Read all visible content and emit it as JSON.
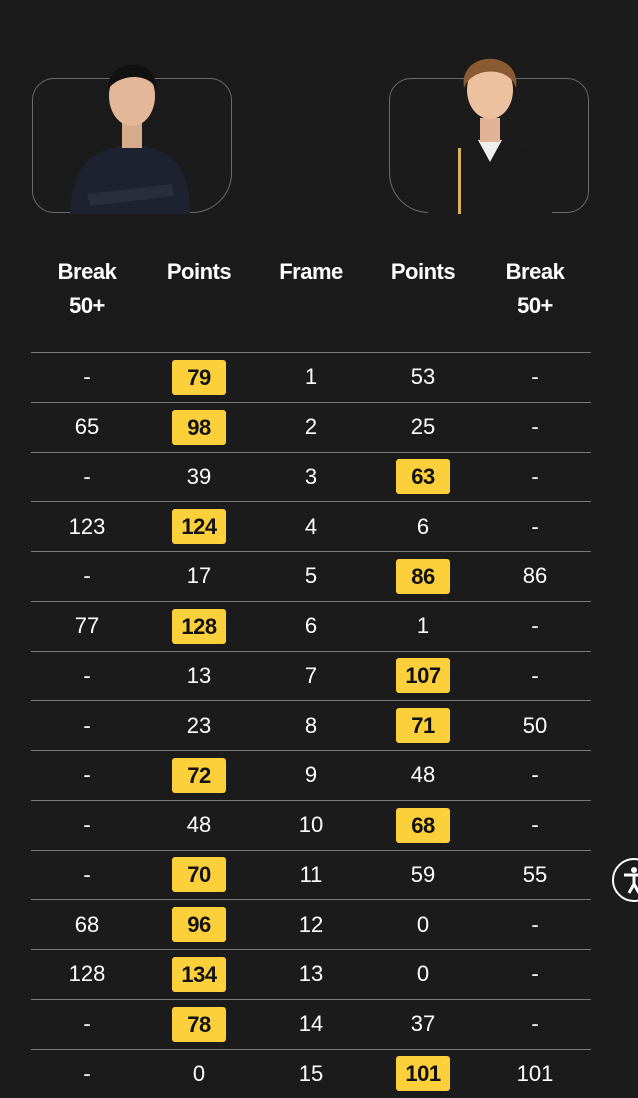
{
  "colors": {
    "background": "#1b1b1b",
    "winner_badge": "#fcd03a"
  },
  "players": [
    {
      "side": "left",
      "photo": "player-photo"
    },
    {
      "side": "right",
      "photo": "player-photo"
    }
  ],
  "headers": {
    "break_left": [
      "Break",
      "50+"
    ],
    "points_left": "Points",
    "frame": "Frame",
    "points_right": "Points",
    "break_right": [
      "Break",
      "50+"
    ]
  },
  "rows": [
    {
      "break_left": "-",
      "points_left": "79",
      "frame": "1",
      "points_right": "53",
      "break_right": "-",
      "winner": "left"
    },
    {
      "break_left": "65",
      "points_left": "98",
      "frame": "2",
      "points_right": "25",
      "break_right": "-",
      "winner": "left"
    },
    {
      "break_left": "-",
      "points_left": "39",
      "frame": "3",
      "points_right": "63",
      "break_right": "-",
      "winner": "right"
    },
    {
      "break_left": "123",
      "points_left": "124",
      "frame": "4",
      "points_right": "6",
      "break_right": "-",
      "winner": "left"
    },
    {
      "break_left": "-",
      "points_left": "17",
      "frame": "5",
      "points_right": "86",
      "break_right": "86",
      "winner": "right"
    },
    {
      "break_left": "77",
      "points_left": "128",
      "frame": "6",
      "points_right": "1",
      "break_right": "-",
      "winner": "left"
    },
    {
      "break_left": "-",
      "points_left": "13",
      "frame": "7",
      "points_right": "107",
      "break_right": "-",
      "winner": "right"
    },
    {
      "break_left": "-",
      "points_left": "23",
      "frame": "8",
      "points_right": "71",
      "break_right": "50",
      "winner": "right"
    },
    {
      "break_left": "-",
      "points_left": "72",
      "frame": "9",
      "points_right": "48",
      "break_right": "-",
      "winner": "left"
    },
    {
      "break_left": "-",
      "points_left": "48",
      "frame": "10",
      "points_right": "68",
      "break_right": "-",
      "winner": "right"
    },
    {
      "break_left": "-",
      "points_left": "70",
      "frame": "11",
      "points_right": "59",
      "break_right": "55",
      "winner": "left"
    },
    {
      "break_left": "68",
      "points_left": "96",
      "frame": "12",
      "points_right": "0",
      "break_right": "-",
      "winner": "left"
    },
    {
      "break_left": "128",
      "points_left": "134",
      "frame": "13",
      "points_right": "0",
      "break_right": "-",
      "winner": "left"
    },
    {
      "break_left": "-",
      "points_left": "78",
      "frame": "14",
      "points_right": "37",
      "break_right": "-",
      "winner": "left"
    },
    {
      "break_left": "-",
      "points_left": "0",
      "frame": "15",
      "points_right": "101",
      "break_right": "101",
      "winner": "right"
    }
  ],
  "accessibility": {
    "icon": "accessibility-icon"
  }
}
